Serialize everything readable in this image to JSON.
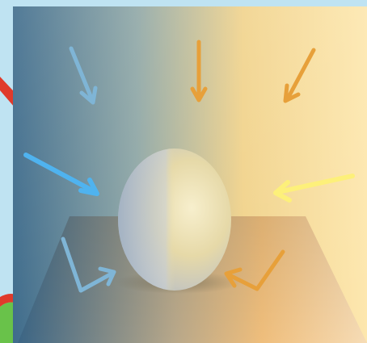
{
  "scene": {
    "subject": "egg",
    "colors": {
      "frame": "#bfe3f2",
      "cool_dark": "#3f6c8c",
      "cool_light": "#7fb5d6",
      "warm": "#f2b04a",
      "warm_light": "#fde7ae",
      "egg_light": "#f4eccd",
      "egg_shadow": "#b8bfc8",
      "arrow_blue": "#4fb3ef",
      "arrow_yellow": "#fdf07a",
      "arrow_orange": "#e7a03a",
      "accent_red": "#e03a2b",
      "accent_green": "#69c24a"
    },
    "light_arrows": [
      {
        "id": "top-left",
        "color_key": "cool_light"
      },
      {
        "id": "top-center",
        "color_key": "arrow_orange"
      },
      {
        "id": "top-right",
        "color_key": "arrow_orange"
      },
      {
        "id": "left",
        "color_key": "arrow_blue"
      },
      {
        "id": "right",
        "color_key": "arrow_yellow"
      },
      {
        "id": "bottom-left-bounce",
        "color_key": "cool_light"
      },
      {
        "id": "bottom-right-bounce",
        "color_key": "arrow_orange"
      }
    ]
  }
}
